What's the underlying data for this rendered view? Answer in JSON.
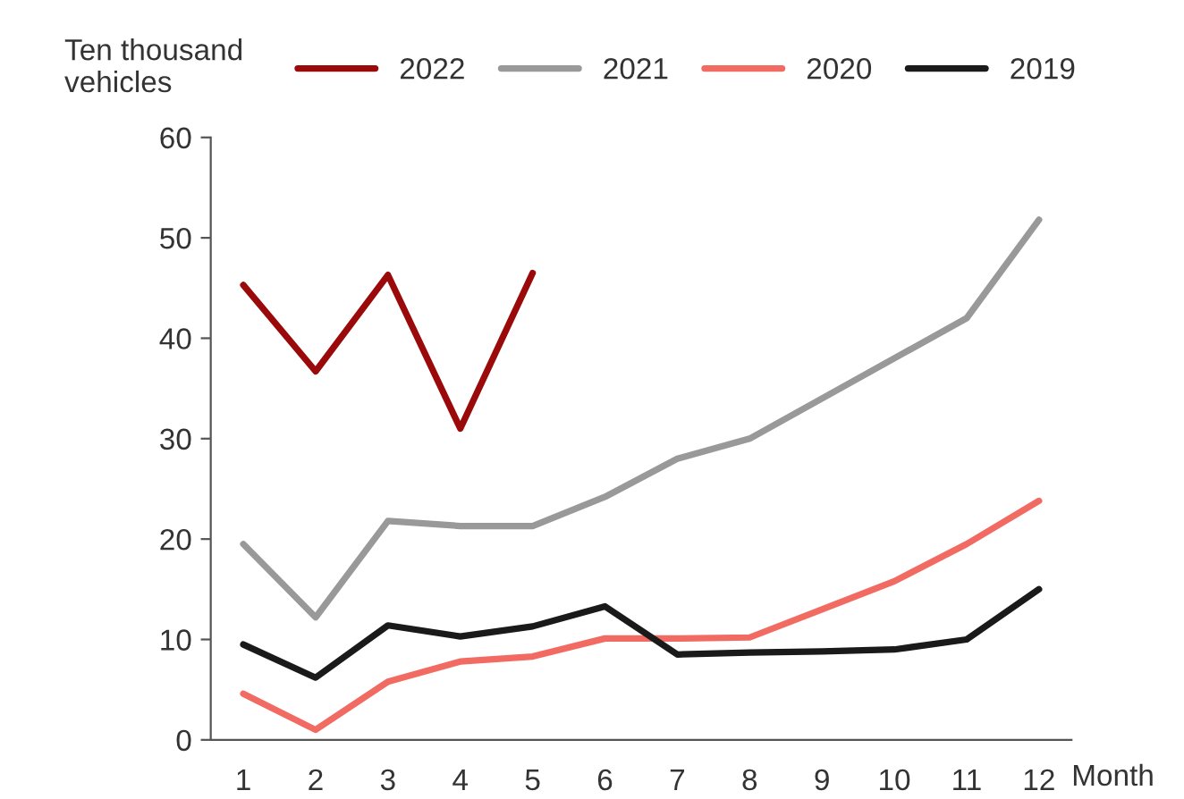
{
  "chart_data": {
    "type": "line",
    "ylabel": "Ten thousand\nvehicles",
    "xlabel": "Month",
    "categories": [
      "1",
      "2",
      "3",
      "4",
      "5",
      "6",
      "7",
      "8",
      "9",
      "10",
      "11",
      "12"
    ],
    "ylim": [
      0,
      60
    ],
    "yticks": [
      0,
      10,
      20,
      30,
      40,
      50,
      60
    ],
    "grid": false,
    "legend": "top",
    "marker": "none",
    "line_style": "solid",
    "series": [
      {
        "name": "2022",
        "color": "#9b0a0a",
        "values": [
          45.3,
          36.7,
          46.3,
          31,
          46.5,
          null,
          null,
          null,
          null,
          null,
          null,
          null
        ]
      },
      {
        "name": "2021",
        "color": "#999999",
        "values": [
          19.5,
          12.2,
          21.8,
          21.3,
          21.3,
          24.2,
          28,
          30,
          34,
          38,
          42,
          51.8
        ]
      },
      {
        "name": "2020",
        "color": "#f26b63",
        "values": [
          4.6,
          1,
          5.8,
          7.8,
          8.3,
          10.1,
          10.1,
          10.2,
          13,
          15.8,
          19.5,
          23.8
        ]
      },
      {
        "name": "2019",
        "color": "#1a1a1a",
        "values": [
          9.5,
          6.2,
          11.4,
          10.3,
          11.3,
          13.3,
          8.5,
          8.7,
          8.8,
          9,
          10,
          15
        ]
      }
    ]
  }
}
